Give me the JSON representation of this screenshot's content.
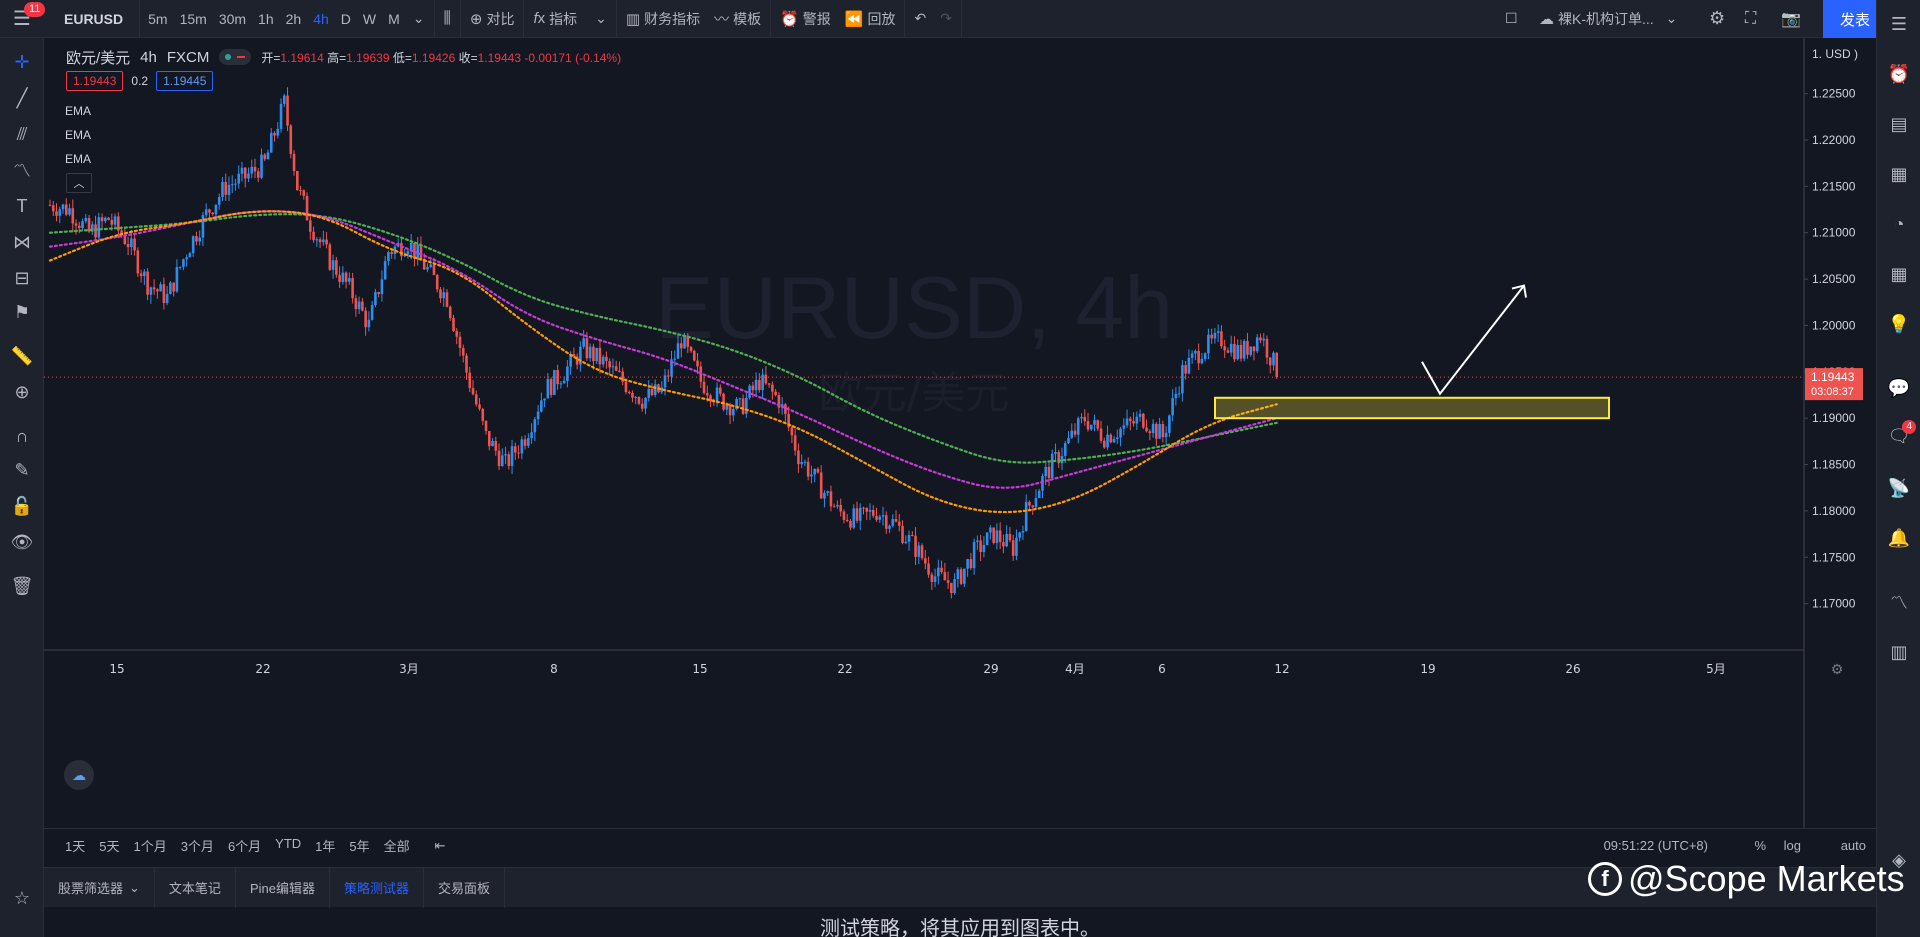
{
  "topbar": {
    "menu_badge": "11",
    "symbol": "EURUSD",
    "timeframes": [
      "5m",
      "15m",
      "30m",
      "1h",
      "2h",
      "4h",
      "D",
      "W",
      "M"
    ],
    "active_timeframe": "4h",
    "compare_label": "对比",
    "indicators_label": "指标",
    "financials_label": "财务指标",
    "templates_label": "模板",
    "alert_label": "警报",
    "replay_label": "回放",
    "layout_name": "裸K-机构订单...",
    "publish_label": "发表"
  },
  "legend": {
    "title": "欧元/美元",
    "interval": "4h",
    "source": "FXCM",
    "open_label": "开=",
    "open_value": "1.19614",
    "high_label": "高=",
    "high_value": "1.19639",
    "low_label": "低=",
    "low_value": "1.19426",
    "close_label": "收=",
    "close_value": "1.19443",
    "change": "-0.00171 (-0.14%)",
    "bid": "1.19443",
    "spread": "0.2",
    "ask": "1.19445",
    "indicators": [
      "EMA",
      "EMA",
      "EMA"
    ]
  },
  "watermark": {
    "symbol": "EURUSD, 4h",
    "name": "欧元/美元"
  },
  "price_axis": {
    "currency": "1. USD )",
    "ticks": [
      "1.22500",
      "1.22000",
      "1.21500",
      "1.21000",
      "1.20500",
      "1.20000",
      "1.19500",
      "1.19000",
      "1.18500",
      "1.18000",
      "1.17500",
      "1.17000"
    ],
    "last_price": "1.19443",
    "countdown": "03:08:37"
  },
  "time_axis": {
    "ticks": [
      "15",
      "22",
      "3月",
      "8",
      "15",
      "22",
      "29",
      "4月",
      "6",
      "12",
      "19",
      "26",
      "5月"
    ]
  },
  "range_bar": {
    "ranges": [
      "1天",
      "5天",
      "1个月",
      "3个月",
      "6个月",
      "YTD",
      "1年",
      "5年",
      "全部"
    ],
    "clock": "09:51:22 (UTC+8)",
    "percent": "%",
    "log": "log",
    "auto": "auto"
  },
  "bottom_panel": {
    "tabs": [
      "股票筛选器",
      "文本笔记",
      "Pine编辑器",
      "策略测试器",
      "交易面板"
    ],
    "active_tab": "策略测试器",
    "message": "测试策略，将其应用到图表中。"
  },
  "branding": "@Scope Markets",
  "right_badge": "4",
  "colors": {
    "up": "#2e8ef0",
    "down": "#ef5350",
    "ema_fast": "#ff9800",
    "ema_mid": "#c73ad6",
    "ema_slow": "#4caf50",
    "zone": "#ffeb3b",
    "accent": "#2962ff"
  },
  "chart_data": {
    "type": "candlestick",
    "symbol": "EURUSD",
    "interval": "4h",
    "ylim": [
      1.165,
      1.231
    ],
    "x_ticks": [
      "15",
      "22",
      "3月",
      "8",
      "15",
      "22",
      "29",
      "4月",
      "6",
      "12",
      "19",
      "26",
      "5月"
    ],
    "price_path": [
      [
        0,
        1.213
      ],
      [
        6,
        1.2125
      ],
      [
        12,
        1.21
      ],
      [
        18,
        1.2115
      ],
      [
        24,
        1.209
      ],
      [
        30,
        1.2045
      ],
      [
        36,
        1.203
      ],
      [
        42,
        1.208
      ],
      [
        48,
        1.212
      ],
      [
        54,
        1.215
      ],
      [
        60,
        1.216
      ],
      [
        66,
        1.2175
      ],
      [
        72,
        1.224
      ],
      [
        76,
        1.215
      ],
      [
        80,
        1.211
      ],
      [
        86,
        1.207
      ],
      [
        92,
        1.204
      ],
      [
        98,
        1.2
      ],
      [
        104,
        1.208
      ],
      [
        110,
        1.209
      ],
      [
        116,
        1.206
      ],
      [
        122,
        1.203
      ],
      [
        128,
        1.195
      ],
      [
        134,
        1.188
      ],
      [
        140,
        1.185
      ],
      [
        146,
        1.188
      ],
      [
        152,
        1.193
      ],
      [
        158,
        1.195
      ],
      [
        164,
        1.1975
      ],
      [
        170,
        1.196
      ],
      [
        176,
        1.194
      ],
      [
        182,
        1.192
      ],
      [
        188,
        1.193
      ],
      [
        194,
        1.1985
      ],
      [
        200,
        1.194
      ],
      [
        206,
        1.192
      ],
      [
        212,
        1.191
      ],
      [
        218,
        1.194
      ],
      [
        224,
        1.192
      ],
      [
        230,
        1.186
      ],
      [
        236,
        1.183
      ],
      [
        242,
        1.18
      ],
      [
        248,
        1.179
      ],
      [
        254,
        1.18
      ],
      [
        260,
        1.1785
      ],
      [
        266,
        1.176
      ],
      [
        272,
        1.173
      ],
      [
        278,
        1.172
      ],
      [
        284,
        1.1755
      ],
      [
        290,
        1.1775
      ],
      [
        296,
        1.176
      ],
      [
        300,
        1.18
      ],
      [
        306,
        1.184
      ],
      [
        312,
        1.187
      ],
      [
        318,
        1.19
      ],
      [
        324,
        1.188
      ],
      [
        330,
        1.189
      ],
      [
        336,
        1.19
      ],
      [
        342,
        1.188
      ],
      [
        348,
        1.195
      ],
      [
        354,
        1.1975
      ],
      [
        360,
        1.1985
      ],
      [
        366,
        1.197
      ],
      [
        372,
        1.199
      ],
      [
        378,
        1.1944
      ]
    ],
    "ema_fast": [
      1.207,
      1.21,
      1.211,
      1.2125,
      1.212,
      1.208,
      1.206,
      1.2,
      1.195,
      1.193,
      1.1915,
      1.189,
      1.185,
      1.181,
      1.1795,
      1.181,
      1.185,
      1.1895,
      1.1915
    ],
    "ema_mid": [
      1.2085,
      1.2095,
      1.211,
      1.2125,
      1.212,
      1.209,
      1.206,
      1.201,
      1.1985,
      1.1965,
      1.1935,
      1.1905,
      1.187,
      1.184,
      1.182,
      1.184,
      1.186,
      1.188,
      1.19
    ],
    "ema_slow": [
      1.21,
      1.2105,
      1.211,
      1.212,
      1.212,
      1.21,
      1.207,
      1.203,
      1.201,
      1.1995,
      1.1975,
      1.1945,
      1.1905,
      1.1875,
      1.185,
      1.1855,
      1.1865,
      1.188,
      1.1895
    ],
    "zone": {
      "price_low": 1.19,
      "price_high": 1.1922
    },
    "projection": {
      "from": 1.1922,
      "to": 1.2043
    },
    "last_price": 1.19443
  }
}
